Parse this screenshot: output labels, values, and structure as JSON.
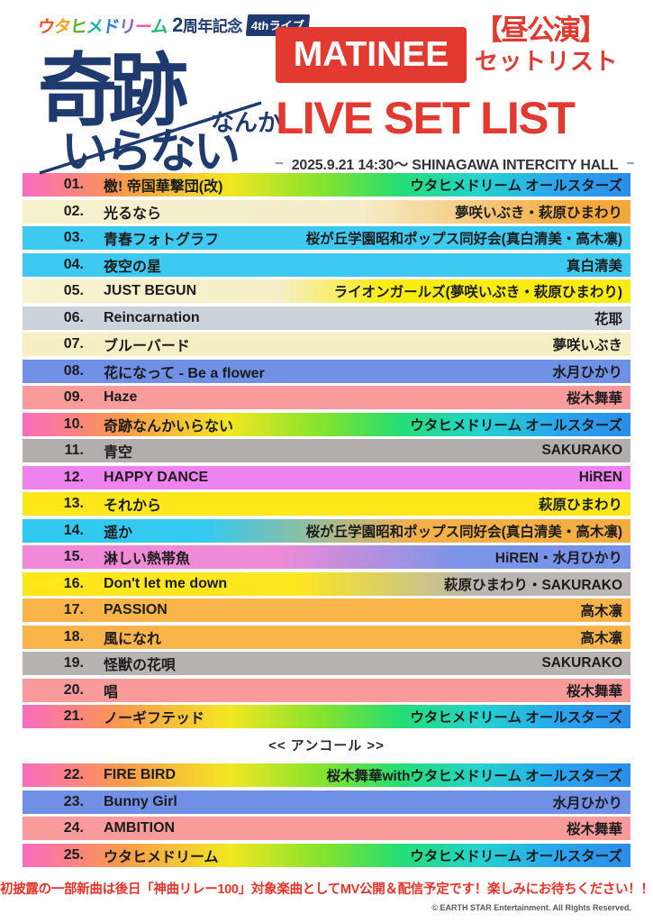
{
  "header": {
    "badge": {
      "wordmark_chars": [
        {
          "ch": "ウ",
          "color": "#f0512b"
        },
        {
          "ch": "タ",
          "color": "#f5a01e"
        },
        {
          "ch": "ヒ",
          "color": "#56b52a"
        },
        {
          "ch": "メ",
          "color": "#1cb5a0"
        },
        {
          "ch": "ド",
          "color": "#2e7de0"
        },
        {
          "ch": "リ",
          "color": "#9055d5"
        },
        {
          "ch": "ー",
          "color": "#f0589f"
        },
        {
          "ch": "ム",
          "color": "#2bb573"
        }
      ],
      "anniversary_prefix": "2",
      "anniversary_suffix": "周年記念",
      "live_tag": "4thライブ"
    },
    "logo": {
      "title_main": "奇跡",
      "title_nanka": "なんか",
      "title_iranai": "いらない"
    },
    "matinee_label": "MATINEE",
    "show_type": "【昼公演】",
    "setlist_label": "セットリスト",
    "main_title": "LIVE SET LIST",
    "date_line": "2025.9.21 14:30～ SHINAGAWA INTERCITY HALL"
  },
  "colors": {
    "accent_red": "#e23a30",
    "logo_navy": "#1e3a6e",
    "row_text": "#1c1c1c",
    "rainbow": "linear-gradient(90deg,#fa6cbe 0%,#f9984f 16%,#f2e722 34%,#7fe32f 50%,#25dd74 62%,#25d3cc 75%,#2aa5ee 88%,#2b8de8 100%)"
  },
  "setlist": {
    "main": [
      {
        "num": "01.",
        "title": "檄! 帝国華撃団(改)",
        "artist": "ウタヒメドリーム オールスターズ",
        "bg": "linear-gradient(90deg,#fa6cbe 0%,#f9984f 16%,#f2e722 34%,#7fe32f 50%,#25dd74 62%,#25d3cc 75%,#2aa5ee 88%,#2b8de8 100%)"
      },
      {
        "num": "02.",
        "title": "光るなら",
        "artist": "夢咲いぶき・萩原ひまわり",
        "bg": "linear-gradient(90deg,#f7f0cc 0%,#f6eecb 55%,#f4a93c 92%,#f3a83b 100%)"
      },
      {
        "num": "03.",
        "title": "青春フォトグラフ",
        "artist": "桜が丘学園昭和ポップス同好会(真白清美・高木凛)",
        "bg": "#3ec9f1"
      },
      {
        "num": "04.",
        "title": "夜空の星",
        "artist": "真白清美",
        "bg": "#3ec9f1"
      },
      {
        "num": "05.",
        "title": "JUST BEGUN",
        "artist": "ライオンガールズ(夢咲いぶき・萩原ひまわり)",
        "bg": "linear-gradient(90deg,#f7f2cf 0%,#f6efc9 42%,#f8ec13 60%,#f8ec13 100%)"
      },
      {
        "num": "06.",
        "title": "Reincarnation",
        "artist": "花耶",
        "bg": "#ccd3da"
      },
      {
        "num": "07.",
        "title": "ブルーバード",
        "artist": "夢咲いぶき",
        "bg": "#f6eec5"
      },
      {
        "num": "08.",
        "title": "花になって - Be a flower",
        "artist": "水月ひかり",
        "bg": "#7090e6"
      },
      {
        "num": "09.",
        "title": "Haze",
        "artist": "桜木舞華",
        "bg": "#f99a9b"
      },
      {
        "num": "10.",
        "title": "奇跡なんかいらない",
        "artist": "ウタヒメドリーム オールスターズ",
        "bg": "linear-gradient(90deg,#fa6cbe 0%,#f9984f 16%,#f2e722 34%,#7fe32f 50%,#25dd74 62%,#25d3cc 75%,#2aa5ee 88%,#2b8de8 100%)"
      },
      {
        "num": "11.",
        "title": "青空",
        "artist": "SAKURAKO",
        "bg": "#b3aeae"
      },
      {
        "num": "12.",
        "title": "HAPPY DANCE",
        "artist": "HiREN",
        "bg": "#ee82ee"
      },
      {
        "num": "13.",
        "title": "それから",
        "artist": "萩原ひまわり",
        "bg": "#ffe71c"
      },
      {
        "num": "14.",
        "title": "遥か",
        "artist": "桜が丘学園昭和ポップス同好会(真白清美・高木凛)",
        "bg": "linear-gradient(90deg,#2fc8f0 0%,#35c9f1 30%,#f5b04a 65%,#f5ad42 100%)"
      },
      {
        "num": "15.",
        "title": "淋しい熱帯魚",
        "artist": "HiREN・水月ひかり",
        "bg": "linear-gradient(90deg,#f08ad8 0%,#ef8ad6 42%,#7b95e8 72%,#7591e8 100%)"
      },
      {
        "num": "16.",
        "title": "Don't let me down",
        "artist": "萩原ひまわり・SAKURAKO",
        "bg": "linear-gradient(90deg,#ffe71c 0%,#fde71e 45%,#b9b5b5 75%,#bab6b6 100%)"
      },
      {
        "num": "17.",
        "title": "PASSION",
        "artist": "高木凛",
        "bg": "#fbb44a"
      },
      {
        "num": "18.",
        "title": "風になれ",
        "artist": "高木凛",
        "bg": "#fbb44a"
      },
      {
        "num": "19.",
        "title": "怪獣の花唄",
        "artist": "SAKURAKO",
        "bg": "#b7b3b3"
      },
      {
        "num": "20.",
        "title": "唱",
        "artist": "桜木舞華",
        "bg": "#f99a9b"
      },
      {
        "num": "21.",
        "title": "ノーギフテッド",
        "artist": "ウタヒメドリーム オールスターズ",
        "bg": "linear-gradient(90deg,#fa6cbe 0%,#f9984f 16%,#f2e722 34%,#7fe32f 50%,#25dd74 62%,#25d3cc 75%,#2aa5ee 88%,#2b8de8 100%)"
      }
    ],
    "encore_label": "<< アンコール >>",
    "encore": [
      {
        "num": "22.",
        "title": "FIRE BIRD",
        "artist": "桜木舞華withウタヒメドリーム オールスターズ",
        "bg": "linear-gradient(90deg,#fa6cbe 0%,#f9984f 16%,#f2e722 34%,#7fe32f 50%,#25dd74 62%,#25d3cc 75%,#2aa5ee 88%,#2b8de8 100%)"
      },
      {
        "num": "23.",
        "title": "Bunny Girl",
        "artist": "水月ひかり",
        "bg": "#7090e6"
      },
      {
        "num": "24.",
        "title": "AMBITION",
        "artist": "桜木舞華",
        "bg": "#f99a9b"
      },
      {
        "num": "25.",
        "title": "ウタヒメドリーム",
        "artist": "ウタヒメドリーム オールスターズ",
        "bg": "linear-gradient(90deg,#fa6cbe 0%,#f9984f 16%,#f2e722 34%,#7fe32f 50%,#25dd74 62%,#25d3cc 75%,#2aa5ee 88%,#2b8de8 100%)"
      }
    ]
  },
  "footer": {
    "notice": "初披露の一部新曲は後日「神曲リレー100」対象楽曲としてMV公開＆配信予定です！楽しみにお待ちください！！",
    "copyright": "© EARTH STAR Entertainment. All Rights Reserved."
  }
}
